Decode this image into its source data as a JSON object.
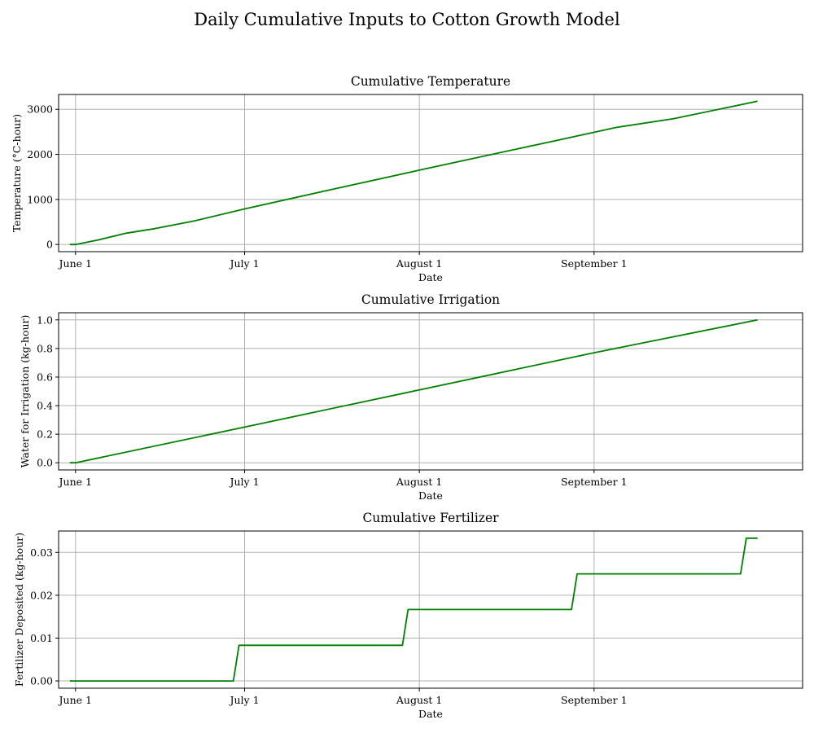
{
  "figure_title": "Daily Cumulative Inputs to Cotton Growth Model",
  "line_color": "#007f00",
  "grid_color": "#b0b0b0",
  "chart_data": [
    {
      "type": "line",
      "title": "Cumulative Temperature",
      "xlabel": "Date",
      "ylabel": "Temperature (°C-hour)",
      "grid": true,
      "xlim": [
        "2018-05-29",
        "2018-10-08"
      ],
      "ylim": [
        -160,
        3330
      ],
      "x_ticks": [
        {
          "date": "2018-06-01",
          "label": "June 1"
        },
        {
          "date": "2018-07-01",
          "label": "July 1"
        },
        {
          "date": "2018-08-01",
          "label": "August 1"
        },
        {
          "date": "2018-09-01",
          "label": "September 1"
        }
      ],
      "y_ticks": [
        {
          "value": 0,
          "label": "0"
        },
        {
          "value": 1000,
          "label": "1000"
        },
        {
          "value": 2000,
          "label": "2000"
        },
        {
          "value": 3000,
          "label": "3000"
        }
      ],
      "series": [
        {
          "x": [
            "2018-05-31",
            "2018-06-01",
            "2018-06-05",
            "2018-06-10",
            "2018-06-15",
            "2018-06-22",
            "2018-07-01",
            "2018-07-15",
            "2018-08-01",
            "2018-08-15",
            "2018-08-25",
            "2018-09-05",
            "2018-09-15",
            "2018-09-30"
          ],
          "y": [
            0,
            0,
            100,
            250,
            350,
            520,
            790,
            1180,
            1650,
            2030,
            2300,
            2600,
            2790,
            3180
          ]
        }
      ]
    },
    {
      "type": "line",
      "title": "Cumulative Irrigation",
      "xlabel": "Date",
      "ylabel": "Water for Irrigation (kg-hour)",
      "grid": true,
      "xlim": [
        "2018-05-29",
        "2018-10-08"
      ],
      "ylim": [
        -0.05,
        1.05
      ],
      "x_ticks": [
        {
          "date": "2018-06-01",
          "label": "June 1"
        },
        {
          "date": "2018-07-01",
          "label": "July 1"
        },
        {
          "date": "2018-08-01",
          "label": "August 1"
        },
        {
          "date": "2018-09-01",
          "label": "September 1"
        }
      ],
      "y_ticks": [
        {
          "value": 0,
          "label": "0.0"
        },
        {
          "value": 0.2,
          "label": "0.2"
        },
        {
          "value": 0.4,
          "label": "0.4"
        },
        {
          "value": 0.6,
          "label": "0.6"
        },
        {
          "value": 0.8,
          "label": "0.8"
        },
        {
          "value": 1.0,
          "label": "1.0"
        }
      ],
      "series": [
        {
          "x": [
            "2018-05-31",
            "2018-06-01",
            "2018-07-01",
            "2018-08-01",
            "2018-09-01",
            "2018-09-30"
          ],
          "y": [
            0,
            0,
            0.25,
            0.51,
            0.77,
            1.0
          ]
        }
      ]
    },
    {
      "type": "line",
      "title": "Cumulative Fertilizer",
      "xlabel": "Date",
      "ylabel": "Fertilizer Deposited (kg-hour)",
      "grid": true,
      "xlim": [
        "2018-05-29",
        "2018-10-08"
      ],
      "ylim": [
        -0.0017,
        0.035
      ],
      "x_ticks": [
        {
          "date": "2018-06-01",
          "label": "June 1"
        },
        {
          "date": "2018-07-01",
          "label": "July 1"
        },
        {
          "date": "2018-08-01",
          "label": "August 1"
        },
        {
          "date": "2018-09-01",
          "label": "September 1"
        }
      ],
      "y_ticks": [
        {
          "value": 0,
          "label": "0.00"
        },
        {
          "value": 0.01,
          "label": "0.01"
        },
        {
          "value": 0.02,
          "label": "0.02"
        },
        {
          "value": 0.03,
          "label": "0.03"
        }
      ],
      "series": [
        {
          "x": [
            "2018-05-31",
            "2018-06-29",
            "2018-06-30",
            "2018-07-29",
            "2018-07-30",
            "2018-08-28",
            "2018-08-29",
            "2018-09-27",
            "2018-09-28",
            "2018-09-30"
          ],
          "y": [
            0,
            0,
            0.00833,
            0.00833,
            0.01667,
            0.01667,
            0.025,
            0.025,
            0.03333,
            0.03333
          ]
        }
      ]
    }
  ]
}
